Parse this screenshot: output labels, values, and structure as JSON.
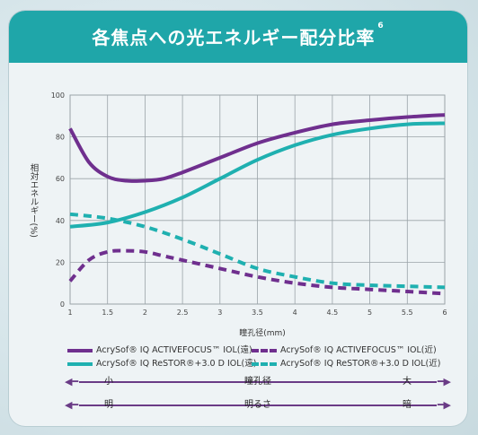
{
  "header": {
    "title": "各焦点への光エネルギー配分比率",
    "ref": "6"
  },
  "colors": {
    "purple": "#6f2f8e",
    "teal": "#1fb0b0",
    "banner": "#1fa6a9",
    "grid": "#9aa3a8"
  },
  "chart_data": {
    "type": "line",
    "ylabel": "相対エネルギー(%)",
    "xlabel": "瞳孔径(mm)",
    "xlim": [
      1,
      6
    ],
    "ylim": [
      0,
      100
    ],
    "xticks": [
      "1",
      "1.5",
      "2",
      "2.5",
      "3",
      "3.5",
      "4",
      "4.5",
      "5",
      "5.5",
      "6"
    ],
    "yticks": [
      "0",
      "20",
      "40",
      "60",
      "80",
      "100"
    ],
    "grid": true,
    "series": [
      {
        "name": "AcrySof® IQ ACTIVEFOCUS™ IOL(遠)",
        "color": "#6f2f8e",
        "dash": false,
        "x": [
          1.0,
          1.25,
          1.5,
          1.75,
          2.0,
          2.25,
          2.5,
          3.0,
          3.5,
          4.0,
          4.5,
          5.0,
          5.5,
          6.0
        ],
        "y": [
          84,
          68,
          61,
          59,
          59,
          60,
          63,
          70,
          77,
          82,
          86,
          88,
          89.5,
          90.5
        ]
      },
      {
        "name": "AcrySof® IQ ACTIVEFOCUS™ IOL(近)",
        "color": "#6f2f8e",
        "dash": true,
        "x": [
          1.0,
          1.25,
          1.5,
          1.75,
          2.0,
          2.25,
          2.5,
          3.0,
          3.5,
          4.0,
          4.5,
          5.0,
          5.5,
          6.0
        ],
        "y": [
          11,
          21,
          25,
          25.5,
          25,
          23,
          21,
          17,
          13,
          10,
          8,
          7,
          6,
          5
        ]
      },
      {
        "name": "AcrySof® IQ ReSTOR®+3.0 D IOL(遠)",
        "color": "#1fb0b0",
        "dash": false,
        "x": [
          1.0,
          1.5,
          2.0,
          2.5,
          3.0,
          3.5,
          4.0,
          4.5,
          5.0,
          5.5,
          6.0
        ],
        "y": [
          37,
          39,
          44,
          51,
          60,
          69,
          76,
          81,
          84,
          86,
          86.5
        ]
      },
      {
        "name": "AcrySof® IQ ReSTOR®+3.0 D IOL(近)",
        "color": "#1fb0b0",
        "dash": true,
        "x": [
          1.0,
          1.5,
          2.0,
          2.5,
          3.0,
          3.5,
          4.0,
          4.5,
          5.0,
          5.5,
          6.0
        ],
        "y": [
          43,
          41,
          37,
          31,
          24,
          17,
          13,
          10,
          9,
          8.5,
          8
        ]
      }
    ]
  },
  "scales": [
    {
      "left": "小",
      "middle": "瞳孔径",
      "right": "大"
    },
    {
      "left": "明",
      "middle": "明るさ",
      "right": "暗"
    }
  ]
}
